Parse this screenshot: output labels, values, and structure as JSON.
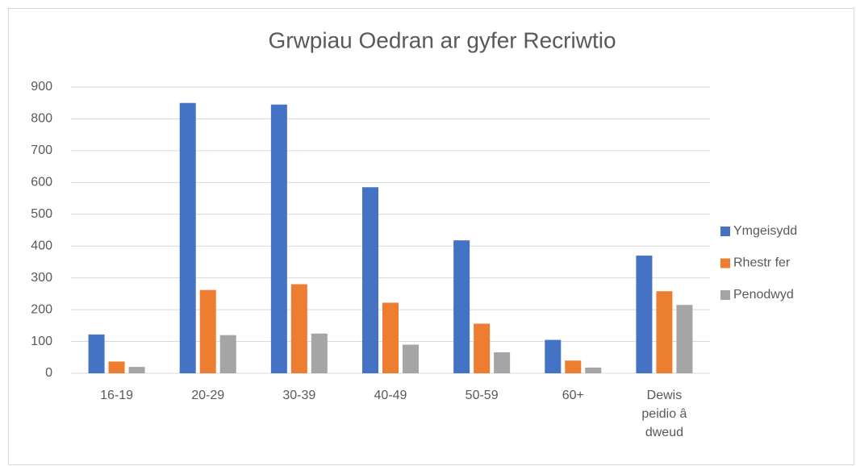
{
  "chart_data": {
    "type": "bar",
    "title": "Grwpiau Oedran ar gyfer Recriwtio",
    "categories": [
      "16-19",
      "20-29",
      "30-39",
      "40-49",
      "50-59",
      "60+",
      "Dewis peidio â dweud"
    ],
    "series": [
      {
        "name": "Ymgeisydd",
        "color": "#4472c4",
        "values": [
          122,
          850,
          845,
          585,
          418,
          105,
          370
        ]
      },
      {
        "name": "Rhestr fer",
        "color": "#ed7d31",
        "values": [
          37,
          262,
          280,
          222,
          156,
          40,
          258
        ]
      },
      {
        "name": "Penodwyd",
        "color": "#a5a5a5",
        "values": [
          20,
          120,
          125,
          90,
          66,
          18,
          215
        ]
      }
    ],
    "ylim": [
      0,
      900
    ],
    "yticks": [
      0,
      100,
      200,
      300,
      400,
      500,
      600,
      700,
      800,
      900
    ],
    "grid": true,
    "legend": "right"
  }
}
